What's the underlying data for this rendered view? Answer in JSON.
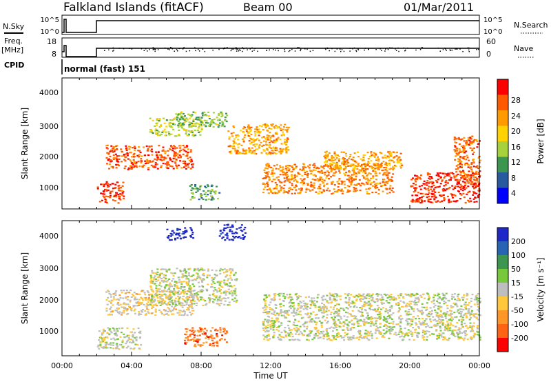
{
  "header": {
    "site": "Falkland Islands (fitACF)",
    "beam": "Beam 00",
    "date": "01/Mar/2011"
  },
  "top_panels": {
    "nsky_label": "N.Sky",
    "nsky_ticks": [
      "10^5",
      "10^0"
    ],
    "nsearch_label": "N.Search",
    "nsearch_ticks": [
      "10^5",
      "10^0"
    ],
    "freq_label": "Freq.",
    "freq_unit": "[MHz]",
    "freq_ticks": [
      "18",
      "8"
    ],
    "nave_label": "Nave",
    "nave_ticks": [
      "60",
      "0"
    ],
    "cpid_label": "CPID",
    "cpid_text": "normal (fast) 151"
  },
  "power_colorbar": {
    "label": "Power [dB]",
    "ticks": [
      "28",
      "24",
      "20",
      "16",
      "12",
      "8",
      "4"
    ],
    "colors": [
      "#ff0000",
      "#ff5a00",
      "#ff9a00",
      "#ffd200",
      "#a8d23c",
      "#3c9650",
      "#285aa0",
      "#0000ff"
    ]
  },
  "velocity_colorbar": {
    "label": "Velocity [m s⁻¹]",
    "ticks": [
      "200",
      "100",
      "50",
      "15",
      "-15",
      "-50",
      "-100",
      "-200"
    ],
    "colors": [
      "#1e28c8",
      "#2864b4",
      "#3c9650",
      "#78c83c",
      "#bebebe",
      "#ffc83c",
      "#ff9628",
      "#ff6414",
      "#ff0000"
    ]
  },
  "range_ticks": [
    "4000",
    "3000",
    "2000",
    "1000"
  ],
  "y_axis_label": "Slant Range [km]",
  "x_axis": {
    "label": "Time UT",
    "ticks": [
      "00:00",
      "04:00",
      "08:00",
      "12:00",
      "16:00",
      "20:00",
      "00:00"
    ]
  },
  "chart_data": [
    {
      "type": "heatmap",
      "title": "Power [dB]",
      "xlabel": "Time UT",
      "ylabel": "Slant Range [km]",
      "xlim": [
        0,
        24
      ],
      "ylim": [
        180,
        4500
      ],
      "clim": [
        0,
        30
      ],
      "features": [
        {
          "t0": 2.0,
          "t1": 3.5,
          "r0": 400,
          "r1": 1100,
          "value": 26
        },
        {
          "t0": 2.5,
          "t1": 7.5,
          "r0": 1500,
          "r1": 2300,
          "value": 25
        },
        {
          "t0": 5.0,
          "t1": 8.0,
          "r0": 2600,
          "r1": 3200,
          "value": 14
        },
        {
          "t0": 6.5,
          "t1": 9.5,
          "r0": 2900,
          "r1": 3400,
          "value": 12
        },
        {
          "t0": 7.3,
          "t1": 9.0,
          "r0": 500,
          "r1": 1000,
          "value": 10
        },
        {
          "t0": 9.5,
          "t1": 13.0,
          "r0": 2000,
          "r1": 3000,
          "value": 20
        },
        {
          "t0": 11.5,
          "t1": 19.0,
          "r0": 700,
          "r1": 1700,
          "value": 22
        },
        {
          "t0": 15.0,
          "t1": 19.5,
          "r0": 1500,
          "r1": 2100,
          "value": 20
        },
        {
          "t0": 20.0,
          "t1": 24.0,
          "r0": 400,
          "r1": 1400,
          "value": 27
        },
        {
          "t0": 22.5,
          "t1": 24.0,
          "r0": 1000,
          "r1": 2600,
          "value": 24
        }
      ]
    },
    {
      "type": "heatmap",
      "title": "Velocity [m s⁻¹]",
      "xlabel": "Time UT",
      "ylabel": "Slant Range [km]",
      "xlim": [
        0,
        24
      ],
      "ylim": [
        180,
        4500
      ],
      "clim": [
        -200,
        200
      ],
      "features": [
        {
          "t0": 2.0,
          "t1": 4.5,
          "r0": 400,
          "r1": 1100,
          "value": 0
        },
        {
          "t0": 2.5,
          "t1": 7.5,
          "r0": 1500,
          "r1": 2300,
          "value": -30
        },
        {
          "t0": 5.0,
          "t1": 10.0,
          "r0": 1800,
          "r1": 3000,
          "value": 0
        },
        {
          "t0": 6.0,
          "t1": 7.5,
          "r0": 3900,
          "r1": 4300,
          "value": 200
        },
        {
          "t0": 7.0,
          "t1": 9.5,
          "r0": 500,
          "r1": 1100,
          "value": -120
        },
        {
          "t0": 9.0,
          "t1": 10.5,
          "r0": 3900,
          "r1": 4400,
          "value": 200
        },
        {
          "t0": 11.5,
          "t1": 24.0,
          "r0": 700,
          "r1": 2200,
          "value": 0
        }
      ]
    }
  ]
}
